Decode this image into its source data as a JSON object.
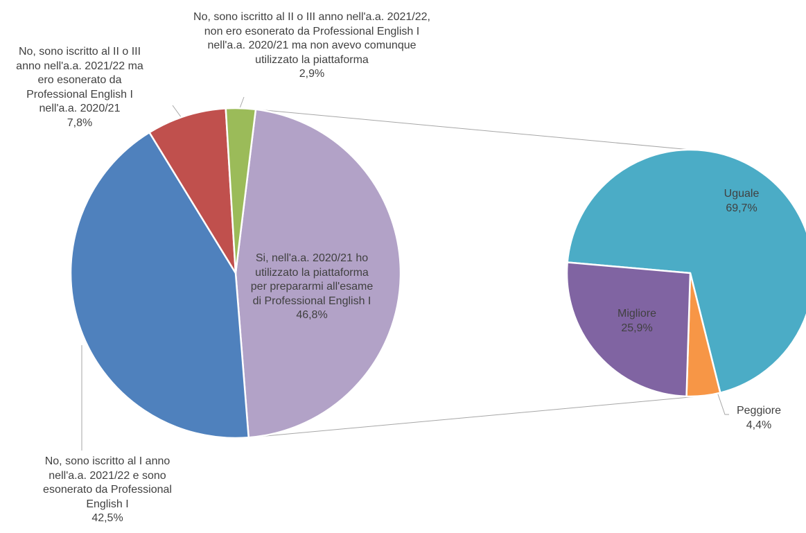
{
  "chart_data": {
    "type": "pie",
    "subtype": "pie-of-pie",
    "main_pie": {
      "slices": [
        {
          "label_lines": [
            "Si, nell'a.a. 2020/21 ho",
            "utilizzato la piattaforma",
            "per prepararmi all'esame",
            "di Professional English I"
          ],
          "value_label": "46,8%",
          "value": 46.8,
          "color": "#B2A2C7",
          "exploded_to_secondary": true
        },
        {
          "label_lines": [
            "No, sono iscritto al I anno",
            "nell'a.a. 2021/22 e sono",
            "esonerato da Professional",
            "English I"
          ],
          "value_label": "42,5%",
          "value": 42.5,
          "color": "#4F81BD"
        },
        {
          "label_lines": [
            "No, sono iscritto al II o III",
            "anno nell'a.a. 2021/22 ma",
            "ero esonerato da",
            "Professional English I",
            "nell'a.a. 2020/21"
          ],
          "value_label": "7,8%",
          "value": 7.8,
          "color": "#C0504D"
        },
        {
          "label_lines": [
            "No, sono iscritto al II o III anno nell'a.a. 2021/22,",
            "non ero esonerato da Professional English I",
            "nell'a.a. 2020/21 ma non avevo comunque",
            "utilizzato la piattaforma"
          ],
          "value_label": "2,9%",
          "value": 2.9,
          "color": "#9BBB59"
        }
      ]
    },
    "secondary_pie": {
      "slices": [
        {
          "label_lines": [
            "Uguale"
          ],
          "value_label": "69,7%",
          "value": 69.7,
          "color": "#4BACC6"
        },
        {
          "label_lines": [
            "Peggiore"
          ],
          "value_label": "4,4%",
          "value": 4.4,
          "color": "#F79646"
        },
        {
          "label_lines": [
            "Migliore"
          ],
          "value_label": "25,9%",
          "value": 25.9,
          "color": "#8064A2"
        }
      ]
    },
    "legend": "none"
  }
}
